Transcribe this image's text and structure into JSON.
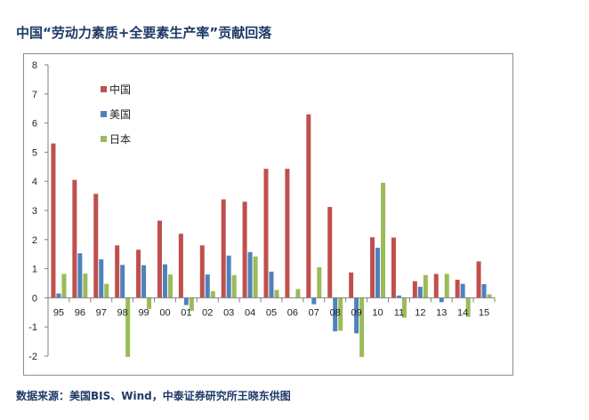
{
  "title": "中国“劳动力素质+全要素生产率”贡献回落",
  "source": "数据来源：美国BIS、Wind，中泰证券研究所王晓东供图",
  "chart_data": {
    "type": "bar",
    "categories": [
      "95",
      "96",
      "97",
      "98",
      "99",
      "00",
      "01",
      "02",
      "03",
      "04",
      "05",
      "06",
      "07",
      "08",
      "09",
      "10",
      "11",
      "12",
      "13",
      "14",
      "15"
    ],
    "series": [
      {
        "name": "中国",
        "color": "#c0504d",
        "values": [
          5.3,
          4.05,
          3.57,
          1.8,
          1.65,
          2.65,
          2.2,
          1.8,
          3.38,
          3.3,
          4.43,
          4.43,
          6.3,
          3.12,
          0.87,
          2.08,
          2.07,
          0.57,
          0.82,
          0.62,
          1.25
        ]
      },
      {
        "name": "美国",
        "color": "#4f81bd",
        "values": [
          0.15,
          1.53,
          1.32,
          1.13,
          1.12,
          1.15,
          -0.25,
          0.8,
          1.45,
          1.57,
          0.9,
          0.0,
          -0.22,
          -1.15,
          -1.22,
          1.72,
          0.08,
          0.38,
          -0.15,
          0.48,
          0.47
        ]
      },
      {
        "name": "日本",
        "color": "#9bbb59",
        "values": [
          0.82,
          0.83,
          0.48,
          -2.03,
          -0.38,
          0.8,
          -0.45,
          0.23,
          0.78,
          1.42,
          0.27,
          0.3,
          1.05,
          -1.13,
          -2.03,
          3.95,
          -0.68,
          0.78,
          0.82,
          -0.65,
          0.12
        ]
      }
    ],
    "yticks": [
      "8",
      "7",
      "6",
      "5",
      "4",
      "3",
      "2",
      "1",
      "0",
      "-1",
      "-2"
    ],
    "ylim": [
      -2,
      8
    ],
    "grid": false,
    "legend": "top-left"
  }
}
